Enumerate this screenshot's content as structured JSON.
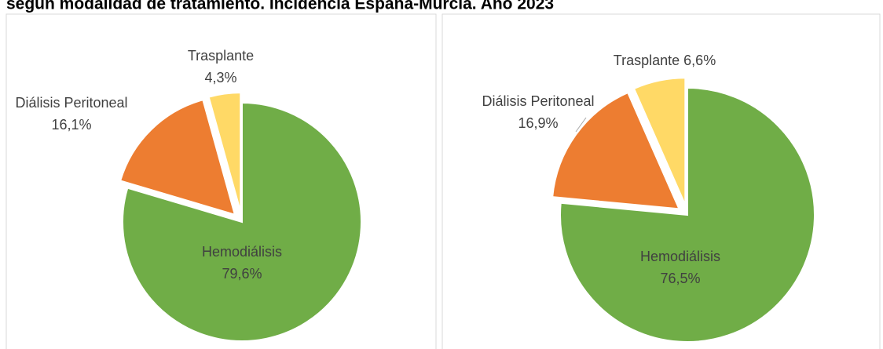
{
  "title": "según modalidad de tratamiento. Incidencia España-Murcia. Año 2023",
  "chart_data": [
    {
      "type": "pie",
      "categories": [
        "Hemodiálisis",
        "Diálisis Peritoneal",
        "Trasplante"
      ],
      "values": [
        79.6,
        16.1,
        4.3
      ],
      "value_labels": [
        "79,6%",
        "16,1%",
        "4,3%"
      ],
      "colors": [
        "#70ad47",
        "#ed7d31",
        "#ffd966"
      ]
    },
    {
      "type": "pie",
      "categories": [
        "Hemodiálisis",
        "Diálisis Peritoneal",
        "Trasplante"
      ],
      "values": [
        76.5,
        16.9,
        6.6
      ],
      "value_labels": [
        "76,5%",
        "16,9%",
        "6,6%"
      ],
      "colors": [
        "#70ad47",
        "#ed7d31",
        "#ffd966"
      ]
    }
  ]
}
